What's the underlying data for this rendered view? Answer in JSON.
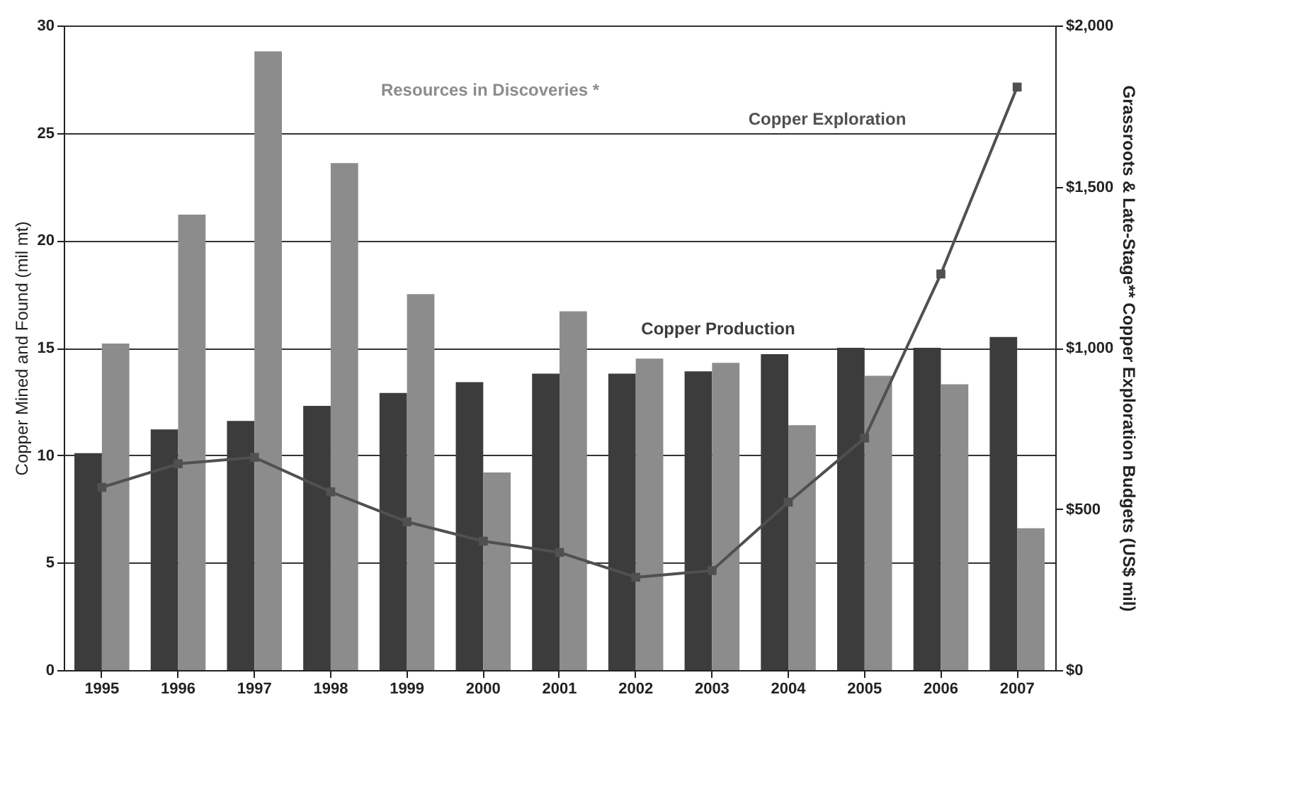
{
  "chart_data": {
    "type": "bar",
    "ylabel": "Copper Mined and Found (mil mt)",
    "y2label": "Grassroots & Late-Stage** Copper Exploration Budgets (US$ mil)",
    "categories": [
      "1995",
      "1996",
      "1997",
      "1998",
      "1999",
      "2000",
      "2001",
      "2002",
      "2003",
      "2004",
      "2005",
      "2006",
      "2007"
    ],
    "series": [
      {
        "name": "Copper Production",
        "color": "#3c3c3c",
        "values": [
          10.1,
          11.2,
          11.6,
          12.3,
          12.9,
          13.4,
          13.8,
          13.8,
          13.9,
          14.7,
          15.0,
          15.0,
          15.5
        ]
      },
      {
        "name": "Resources in Discoveries *",
        "color": "#8c8c8c",
        "values": [
          15.2,
          21.2,
          28.8,
          23.6,
          17.5,
          9.2,
          16.7,
          14.5,
          14.3,
          11.4,
          13.7,
          13.3,
          6.6
        ]
      },
      {
        "name": "Copper Exploration",
        "type": "line",
        "axis": "y2",
        "color": "#505050",
        "values": [
          567,
          640,
          660,
          553,
          460,
          400,
          365,
          288,
          309,
          521,
          720,
          1229,
          1809
        ]
      }
    ],
    "ylim": [
      0,
      30
    ],
    "yticks": [
      0,
      5,
      10,
      15,
      20,
      25,
      30
    ],
    "y2lim": [
      0,
      2000
    ],
    "y2ticks": [
      {
        "value": 0,
        "label": "$0"
      },
      {
        "value": 500,
        "label": "$500"
      },
      {
        "value": 1000,
        "label": "$1,000"
      },
      {
        "value": 1500,
        "label": "$1,500"
      },
      {
        "value": 2000,
        "label": "$2,000"
      }
    ],
    "grid": "y",
    "legend": false,
    "marker": "square",
    "line_style": "solid"
  }
}
